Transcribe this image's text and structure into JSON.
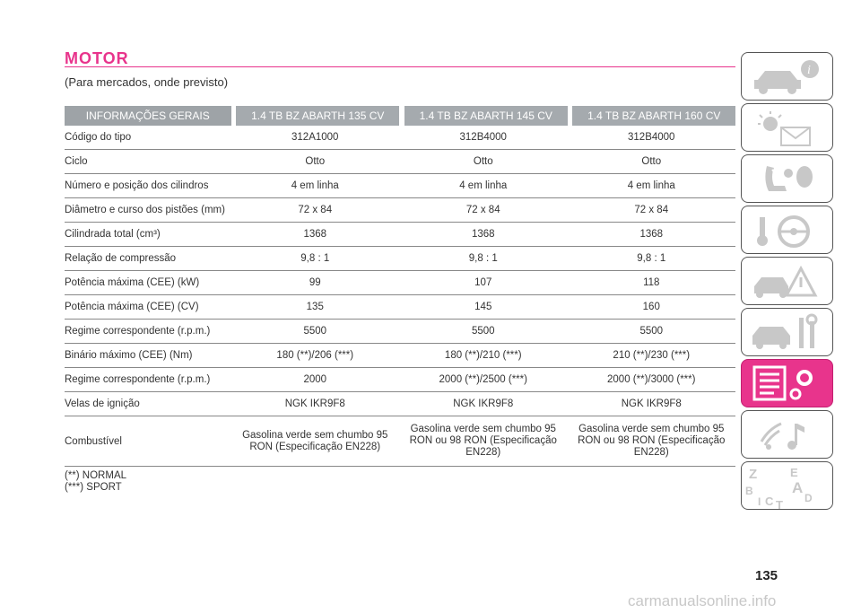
{
  "page": {
    "title": "MOTOR",
    "subtitle": "(Para mercados, onde previsto)",
    "page_number": "135",
    "watermark": "carmanualsonline.info"
  },
  "table": {
    "headers": [
      "INFORMAÇÕES GERAIS",
      "1.4 TB BZ ABARTH 135 CV",
      "1.4 TB BZ ABARTH 145 CV",
      "1.4 TB BZ ABARTH 160 CV"
    ],
    "rows": [
      {
        "label": "Código do tipo",
        "v1": "312A1000",
        "v2": "312B4000",
        "v3": "312B4000"
      },
      {
        "label": "Ciclo",
        "v1": "Otto",
        "v2": "Otto",
        "v3": "Otto"
      },
      {
        "label": "Número e posição dos cilindros",
        "v1": "4 em linha",
        "v2": "4 em linha",
        "v3": "4 em linha"
      },
      {
        "label": "Diâmetro e curso dos pistões (mm)",
        "v1": "72 x 84",
        "v2": "72 x 84",
        "v3": "72 x 84"
      },
      {
        "label": "Cilindrada total (cm³)",
        "v1": "1368",
        "v2": "1368",
        "v3": "1368"
      },
      {
        "label": "Relação de compressão",
        "v1": "9,8 : 1",
        "v2": "9,8 : 1",
        "v3": "9,8 : 1"
      },
      {
        "label": "Potência máxima (CEE) (kW)",
        "v1": "99",
        "v2": "107",
        "v3": "118"
      },
      {
        "label": "Potência máxima (CEE) (CV)",
        "v1": "135",
        "v2": "145",
        "v3": "160"
      },
      {
        "label": "Regime correspondente (r.p.m.)",
        "v1": "5500",
        "v2": "5500",
        "v3": "5500"
      },
      {
        "label": "Binário máximo (CEE) (Nm)",
        "v1": "180 (**)/206 (***)",
        "v2": "180 (**)/210 (***)",
        "v3": "210 (**)/230 (***)"
      },
      {
        "label": "Regime correspondente (r.p.m.)",
        "v1": "2000",
        "v2": "2000 (**)/2500 (***)",
        "v3": "2000 (**)/3000 (***)"
      },
      {
        "label": "Velas de ignição",
        "v1": "NGK IKR9F8",
        "v2": "NGK IKR9F8",
        "v3": "NGK IKR9F8"
      },
      {
        "label": "Combustível",
        "v1": "Gasolina verde sem chumbo 95 RON (Especificação EN228)",
        "v2": "Gasolina verde sem chumbo 95 RON ou 98 RON (Especificação EN228)",
        "v3": "Gasolina verde sem chumbo 95 RON ou 98 RON (Especificação EN228)"
      }
    ]
  },
  "notes": [
    "(**) NORMAL",
    "(***) SPORT"
  ],
  "side_tabs": [
    {
      "icon": "car-info-icon",
      "active": false
    },
    {
      "icon": "warning-light-message-icon",
      "active": false
    },
    {
      "icon": "seat-airbag-icon",
      "active": false
    },
    {
      "icon": "key-steering-wheel-icon",
      "active": false
    },
    {
      "icon": "car-emergency-icon",
      "active": false
    },
    {
      "icon": "car-maintenance-icon",
      "active": false
    },
    {
      "icon": "technical-data-icon",
      "active": true
    },
    {
      "icon": "multimedia-icon",
      "active": false
    },
    {
      "icon": "alphabetical-index-icon",
      "active": false
    }
  ],
  "colors": {
    "accent": "#e8348c",
    "header_gray": "#a5aaae"
  }
}
